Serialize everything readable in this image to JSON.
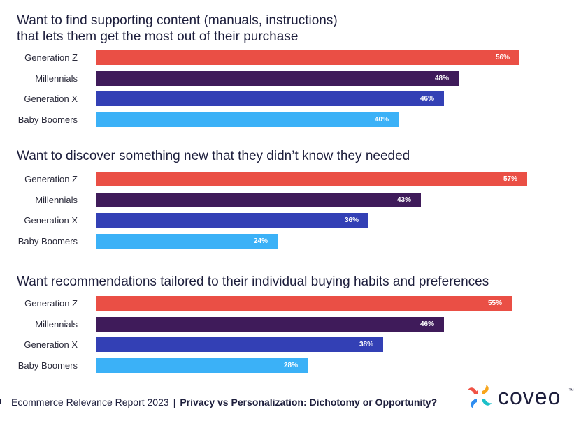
{
  "chart_data": [
    {
      "type": "bar",
      "orientation": "horizontal",
      "title": "Want to find supporting content (manuals, instructions) that lets them get the most out of their purchase",
      "title_lines": [
        "Want to find supporting content (manuals, instructions)",
        "that lets them get the most out of their purchase"
      ],
      "categories": [
        "Generation Z",
        "Millennials",
        "Generation X",
        "Baby Boomers"
      ],
      "values": [
        56,
        48,
        46,
        40
      ],
      "value_labels": [
        "56%",
        "48%",
        "46%",
        "40%"
      ],
      "unit": "%",
      "xlim": [
        0,
        100
      ]
    },
    {
      "type": "bar",
      "orientation": "horizontal",
      "title": "Want to discover something new that they didn’t know they needed",
      "title_lines": [
        "Want to discover something new that they didn’t know they needed"
      ],
      "categories": [
        "Generation Z",
        "Millennials",
        "Generation X",
        "Baby Boomers"
      ],
      "values": [
        57,
        43,
        36,
        24
      ],
      "value_labels": [
        "57%",
        "43%",
        "36%",
        "24%"
      ],
      "unit": "%",
      "xlim": [
        0,
        100
      ]
    },
    {
      "type": "bar",
      "orientation": "horizontal",
      "title": "Want recommendations tailored to their individual buying habits and preferences",
      "title_lines": [
        "Want recommendations tailored to their individual buying habits and preferences"
      ],
      "categories": [
        "Generation Z",
        "Millennials",
        "Generation X",
        "Baby Boomers"
      ],
      "values": [
        55,
        46,
        38,
        28
      ],
      "value_labels": [
        "55%",
        "46%",
        "38%",
        "28%"
      ],
      "unit": "%",
      "xlim": [
        0,
        100
      ]
    }
  ],
  "series_colors": {
    "Generation Z": "#ea4f45",
    "Millennials": "#3f1b5a",
    "Generation X": "#3340b5",
    "Baby Boomers": "#3bb1f7"
  },
  "footer": {
    "report": "Ecommerce Relevance Report 2023",
    "separator": "|",
    "subtitle": "Privacy vs Personalization: Dichotomy or Opportunity?"
  },
  "brand": {
    "name": "coveo",
    "trademark": "™",
    "logo_icon": "coveo-logo-icon"
  }
}
